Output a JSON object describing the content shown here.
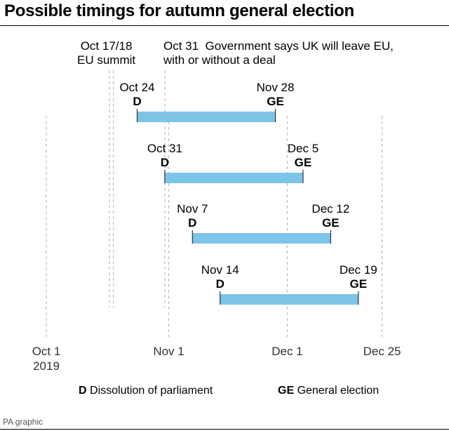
{
  "title": "Possible timings for autumn general election",
  "events": [
    {
      "line1": "Oct 17/18",
      "line2": "EU summit"
    },
    {
      "line1": "Oct 31  Government says UK will leave EU,",
      "line2": "with or without a deal"
    }
  ],
  "legend": {
    "d_key": "D",
    "d_text": "Dissolution of parliament",
    "ge_key": "GE",
    "ge_text": "General election"
  },
  "source": "PA graphic",
  "colors": {
    "bar": "#7cc4e8",
    "gridline": "#bbbbbb",
    "text": "#000000"
  },
  "chart_data": {
    "type": "timeline",
    "x_axis": {
      "type": "date",
      "range": [
        "2019-10-01",
        "2019-12-25"
      ],
      "ticks": [
        {
          "date": "2019-10-01",
          "label": "Oct 1",
          "sublabel": "2019"
        },
        {
          "date": "2019-11-01",
          "label": "Nov 1"
        },
        {
          "date": "2019-12-01",
          "label": "Dec 1"
        },
        {
          "date": "2019-12-25",
          "label": "Dec 25"
        }
      ]
    },
    "reference_lines": [
      {
        "date": "2019-10-17",
        "style": "dashed"
      },
      {
        "date": "2019-10-18",
        "style": "dashed"
      },
      {
        "date": "2019-10-31",
        "style": "dashed"
      }
    ],
    "series": [
      {
        "start": "2019-10-24",
        "start_label": "Oct 24",
        "start_marker": "D",
        "end": "2019-11-28",
        "end_label": "Nov 28",
        "end_marker": "GE"
      },
      {
        "start": "2019-10-31",
        "start_label": "Oct 31",
        "start_marker": "D",
        "end": "2019-12-05",
        "end_label": "Dec 5",
        "end_marker": "GE"
      },
      {
        "start": "2019-11-07",
        "start_label": "Nov 7",
        "start_marker": "D",
        "end": "2019-12-12",
        "end_label": "Dec 12",
        "end_marker": "GE"
      },
      {
        "start": "2019-11-14",
        "start_label": "Nov 14",
        "start_marker": "D",
        "end": "2019-12-19",
        "end_label": "Dec 19",
        "end_marker": "GE"
      }
    ]
  }
}
